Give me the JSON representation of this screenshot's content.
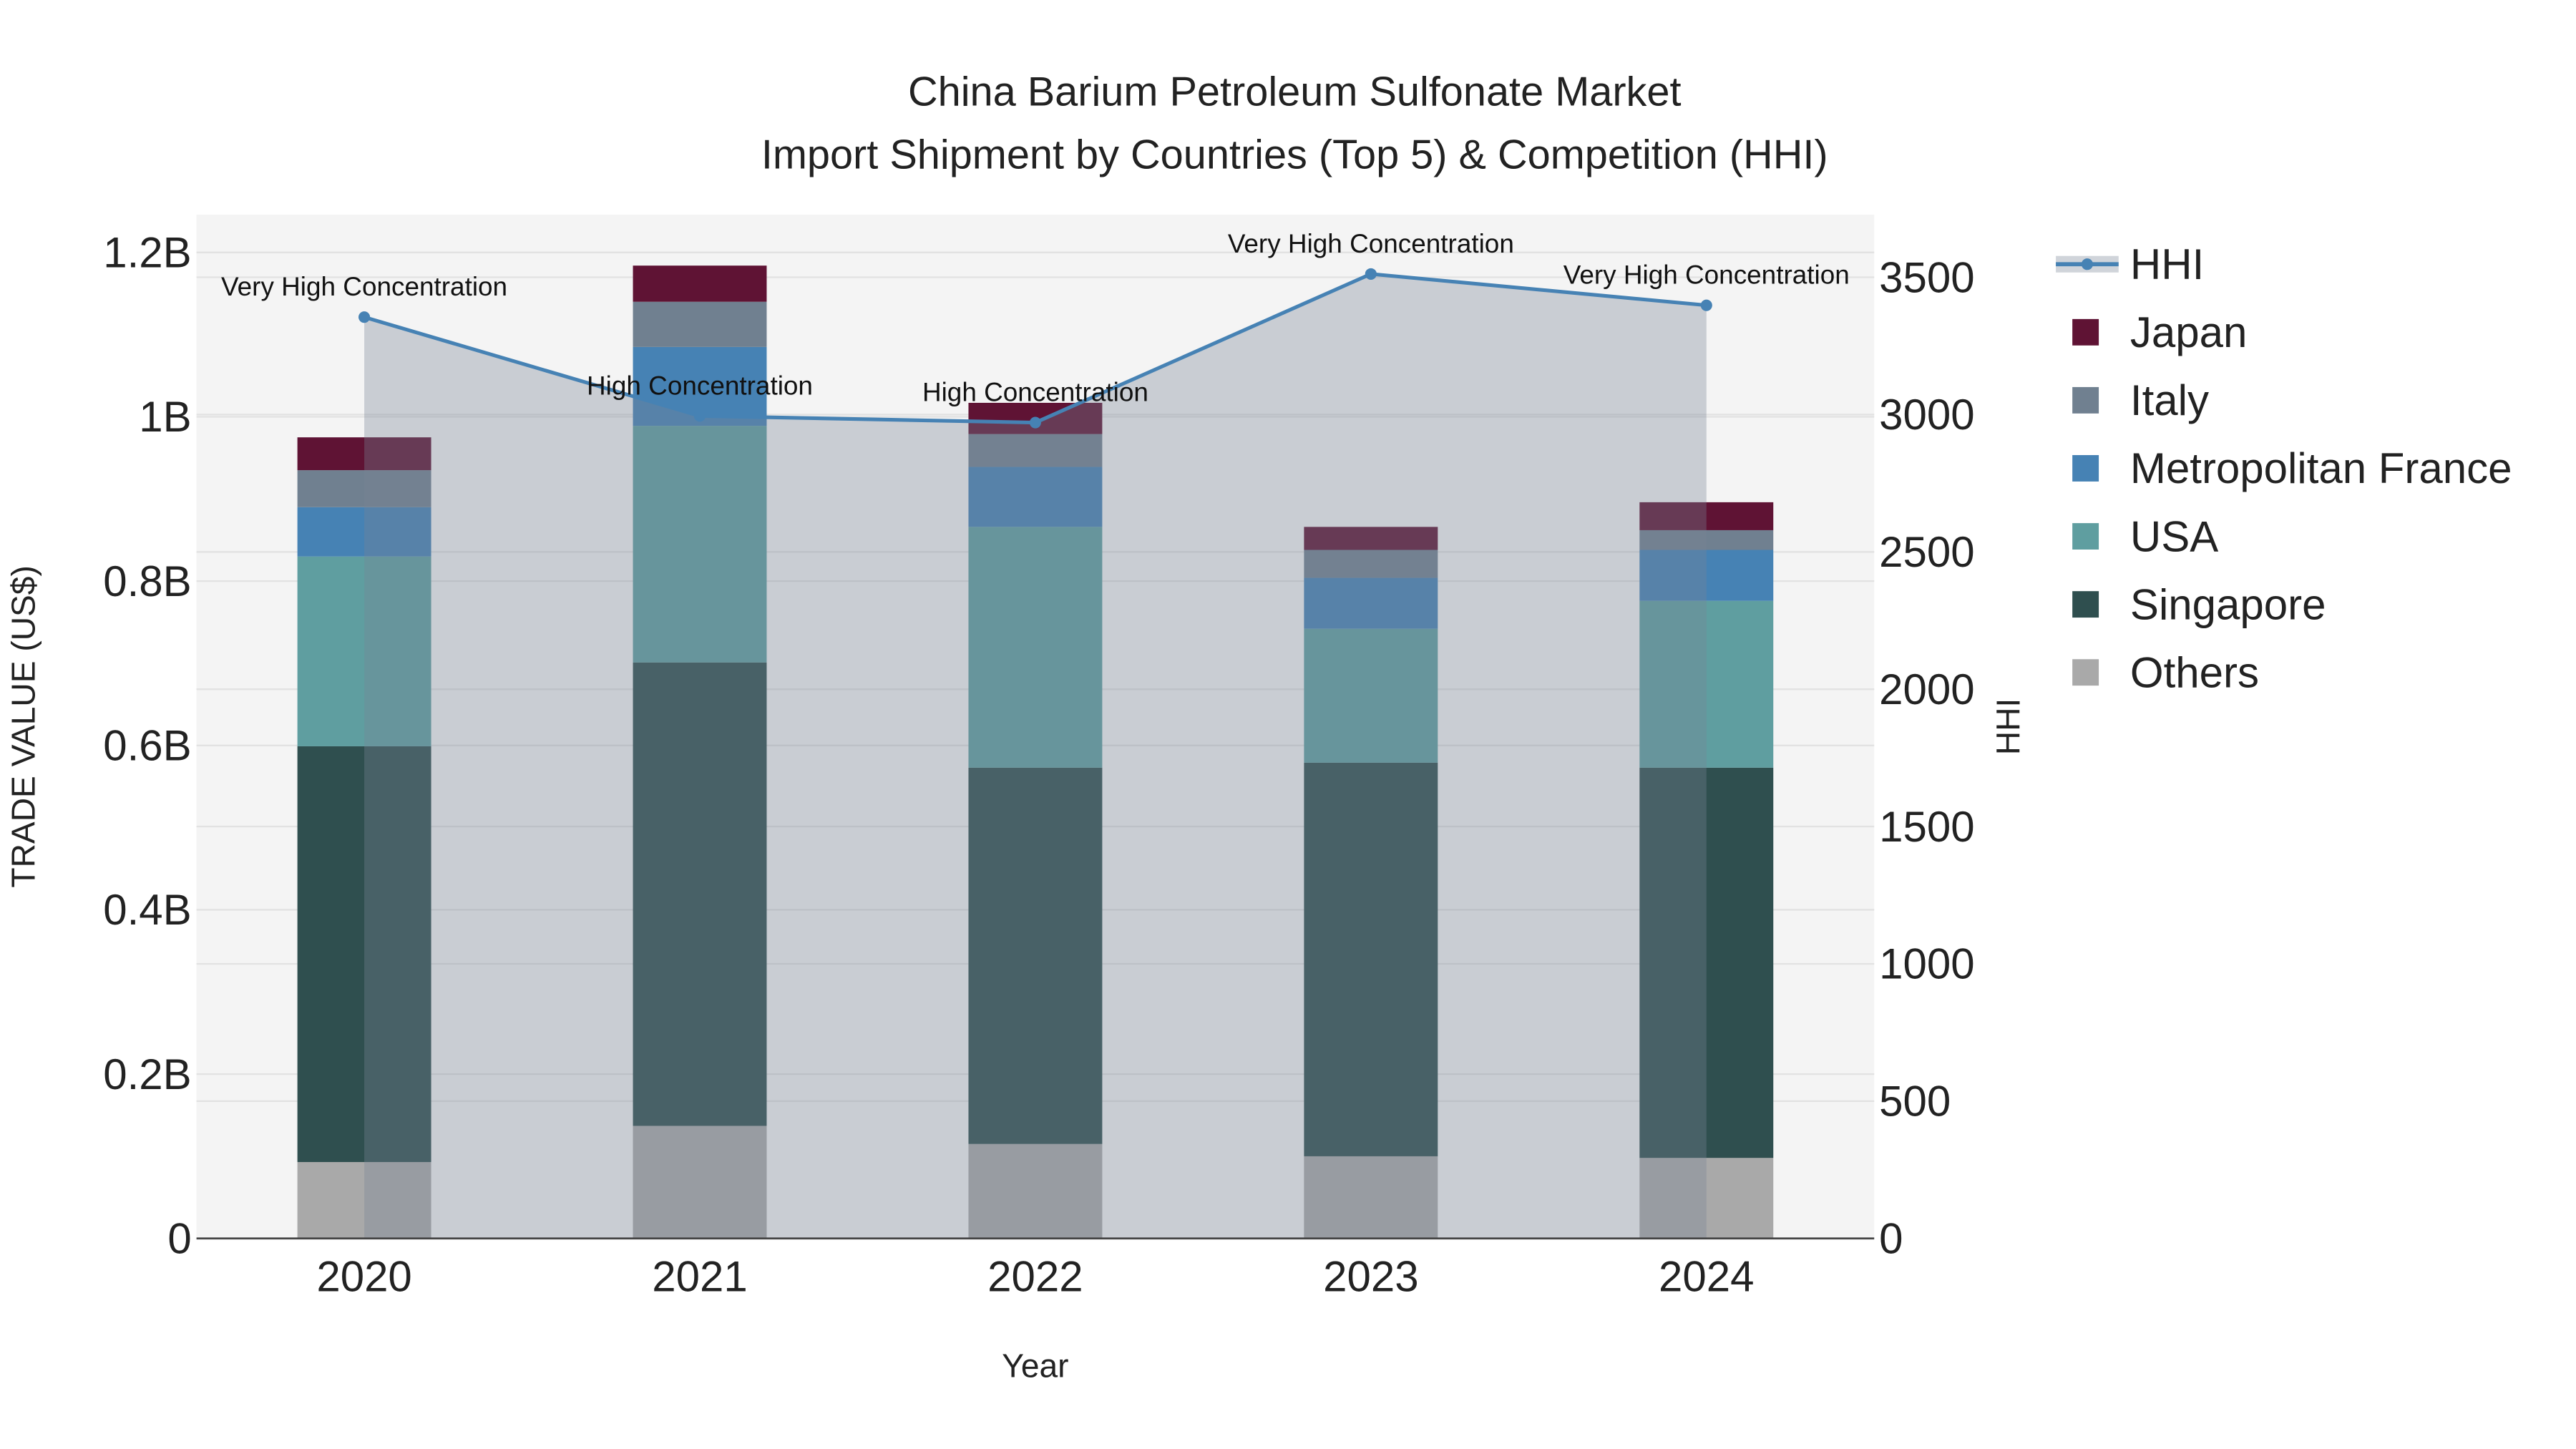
{
  "chart_data": {
    "type": "bar",
    "title": "China Barium Petroleum Sulfonate Market",
    "subtitle": "Import Shipment by Countries (Top 5) & Competition (HHI)",
    "xlabel": "Year",
    "ylabel": "TRADE VALUE (US$)",
    "y2label": "HHI",
    "categories": [
      "2020",
      "2021",
      "2022",
      "2023",
      "2024"
    ],
    "ylim": [
      0,
      1.246
    ],
    "y2lim": [
      0,
      3728
    ],
    "yticks": [
      {
        "v": 0,
        "label": "0"
      },
      {
        "v": 0.2,
        "label": "0.2B"
      },
      {
        "v": 0.4,
        "label": "0.4B"
      },
      {
        "v": 0.6,
        "label": "0.6B"
      },
      {
        "v": 0.8,
        "label": "0.8B"
      },
      {
        "v": 1.0,
        "label": "1B"
      },
      {
        "v": 1.2,
        "label": "1.2B"
      }
    ],
    "y2ticks": [
      {
        "v": 0,
        "label": "0"
      },
      {
        "v": 500,
        "label": "500"
      },
      {
        "v": 1000,
        "label": "1000"
      },
      {
        "v": 1500,
        "label": "1500"
      },
      {
        "v": 2000,
        "label": "2000"
      },
      {
        "v": 2500,
        "label": "2500"
      },
      {
        "v": 3000,
        "label": "3000"
      },
      {
        "v": 3500,
        "label": "3500"
      }
    ],
    "series": [
      {
        "name": "Others",
        "color": "#a9a9a9",
        "values": [
          0.093,
          0.137,
          0.115,
          0.1,
          0.098
        ]
      },
      {
        "name": "Singapore",
        "color": "#2f4f4f",
        "values": [
          0.506,
          0.564,
          0.458,
          0.479,
          0.475
        ]
      },
      {
        "name": "USA",
        "color": "#5f9ea0",
        "values": [
          0.231,
          0.288,
          0.293,
          0.163,
          0.203
        ]
      },
      {
        "name": "Metropolitan France",
        "color": "#4682b4",
        "values": [
          0.06,
          0.096,
          0.073,
          0.062,
          0.062
        ]
      },
      {
        "name": "Italy",
        "color": "#708090",
        "values": [
          0.045,
          0.055,
          0.04,
          0.034,
          0.024
        ]
      },
      {
        "name": "Japan",
        "color": "#5f1334",
        "values": [
          0.04,
          0.044,
          0.038,
          0.028,
          0.034
        ]
      }
    ],
    "hhi": {
      "name": "HHI",
      "color": "#4682b4",
      "values": [
        3355,
        2995,
        2971,
        3512,
        3398
      ],
      "annotations": [
        "Very High Concentration",
        "High Concentration",
        "High Concentration",
        "Very High Concentration",
        "Very High Concentration"
      ]
    },
    "legend": [
      "HHI",
      "Japan",
      "Italy",
      "Metropolitan France",
      "USA",
      "Singapore",
      "Others"
    ],
    "legend_position": "right",
    "grid": true
  }
}
